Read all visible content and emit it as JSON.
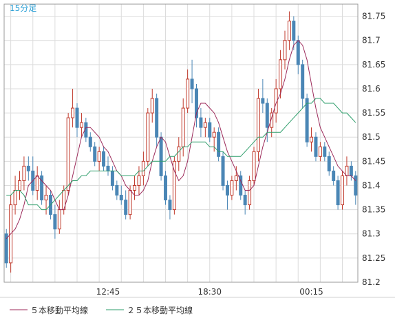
{
  "chart_data": {
    "type": "candlestick",
    "period_label": "15分足",
    "x_tick_labels": [
      "12:45",
      "18:30",
      "00:15"
    ],
    "y_ticks": [
      "81.2",
      "81.25",
      "81.3",
      "81.35",
      "81.4",
      "81.45",
      "81.5",
      "81.55",
      "81.6",
      "81.65",
      "81.7",
      "81.75"
    ],
    "ylim": [
      81.2,
      81.775
    ],
    "grid": true,
    "legend_position": "bottom-left",
    "colors": {
      "up": "#c0392b",
      "down": "#4a86b5",
      "ma5": "#9c2a5a",
      "ma25": "#2e9e6b",
      "grid": "#dcdcdc",
      "frame": "#999999",
      "period": "#2a9fd6"
    },
    "candles_ohlc": [
      [
        81.3,
        81.31,
        81.23,
        81.24
      ],
      [
        81.24,
        81.38,
        81.22,
        81.36
      ],
      [
        81.36,
        81.42,
        81.34,
        81.39
      ],
      [
        81.39,
        81.43,
        81.37,
        81.41
      ],
      [
        81.41,
        81.46,
        81.39,
        81.44
      ],
      [
        81.44,
        81.46,
        81.41,
        81.43
      ],
      [
        81.43,
        81.46,
        81.38,
        81.39
      ],
      [
        81.39,
        81.44,
        81.37,
        81.42
      ],
      [
        81.42,
        81.43,
        81.36,
        81.37
      ],
      [
        81.37,
        81.4,
        81.34,
        81.38
      ],
      [
        81.38,
        81.39,
        81.33,
        81.34
      ],
      [
        81.34,
        81.36,
        81.29,
        81.31
      ],
      [
        81.31,
        81.37,
        81.3,
        81.35
      ],
      [
        81.35,
        81.4,
        81.34,
        81.39
      ],
      [
        81.39,
        81.55,
        81.38,
        81.54
      ],
      [
        81.54,
        81.6,
        81.52,
        81.56
      ],
      [
        81.56,
        81.57,
        81.5,
        81.52
      ],
      [
        81.52,
        81.55,
        81.5,
        81.53
      ],
      [
        81.53,
        81.54,
        81.49,
        81.5
      ],
      [
        81.5,
        81.51,
        81.47,
        81.48
      ],
      [
        81.48,
        81.49,
        81.44,
        81.45
      ],
      [
        81.45,
        81.48,
        81.43,
        81.47
      ],
      [
        81.47,
        81.48,
        81.43,
        81.44
      ],
      [
        81.44,
        81.46,
        81.42,
        81.43
      ],
      [
        81.43,
        81.44,
        81.39,
        81.4
      ],
      [
        81.4,
        81.41,
        81.37,
        81.38
      ],
      [
        81.38,
        81.4,
        81.36,
        81.37
      ],
      [
        81.37,
        81.39,
        81.33,
        81.34
      ],
      [
        81.34,
        81.4,
        81.33,
        81.39
      ],
      [
        81.39,
        81.42,
        81.37,
        81.4
      ],
      [
        81.4,
        81.44,
        81.38,
        81.42
      ],
      [
        81.42,
        81.47,
        81.4,
        81.45
      ],
      [
        81.45,
        81.56,
        81.44,
        81.55
      ],
      [
        81.55,
        81.6,
        81.53,
        81.58
      ],
      [
        81.58,
        81.59,
        81.48,
        81.5
      ],
      [
        81.5,
        81.51,
        81.41,
        81.42
      ],
      [
        81.42,
        81.43,
        81.36,
        81.37
      ],
      [
        81.37,
        81.38,
        81.33,
        81.35
      ],
      [
        81.35,
        81.46,
        81.34,
        81.45
      ],
      [
        81.45,
        81.5,
        81.43,
        81.48
      ],
      [
        81.48,
        81.58,
        81.46,
        81.56
      ],
      [
        81.56,
        81.64,
        81.55,
        81.62
      ],
      [
        81.62,
        81.66,
        81.57,
        81.6
      ],
      [
        81.6,
        81.61,
        81.52,
        81.54
      ],
      [
        81.54,
        81.56,
        81.5,
        81.52
      ],
      [
        81.52,
        81.54,
        81.5,
        81.53
      ],
      [
        81.53,
        81.54,
        81.49,
        81.5
      ],
      [
        81.5,
        81.52,
        81.47,
        81.51
      ],
      [
        81.51,
        81.52,
        81.45,
        81.46
      ],
      [
        81.46,
        81.47,
        81.39,
        81.4
      ],
      [
        81.4,
        81.41,
        81.35,
        81.38
      ],
      [
        81.38,
        81.42,
        81.37,
        81.41
      ],
      [
        81.41,
        81.44,
        81.39,
        81.42
      ],
      [
        81.42,
        81.43,
        81.37,
        81.38
      ],
      [
        81.38,
        81.39,
        81.34,
        81.36
      ],
      [
        81.36,
        81.42,
        81.35,
        81.41
      ],
      [
        81.41,
        81.48,
        81.4,
        81.47
      ],
      [
        81.47,
        81.6,
        81.45,
        81.58
      ],
      [
        81.58,
        81.62,
        81.55,
        81.57
      ],
      [
        81.57,
        81.58,
        81.49,
        81.52
      ],
      [
        81.52,
        81.56,
        81.5,
        81.55
      ],
      [
        81.55,
        81.62,
        81.53,
        81.6
      ],
      [
        81.6,
        81.68,
        81.58,
        81.66
      ],
      [
        81.66,
        81.72,
        81.64,
        81.7
      ],
      [
        81.7,
        81.76,
        81.68,
        81.74
      ],
      [
        81.74,
        81.75,
        81.68,
        81.7
      ],
      [
        81.7,
        81.71,
        81.63,
        81.65
      ],
      [
        81.65,
        81.66,
        81.56,
        81.58
      ],
      [
        81.58,
        81.59,
        81.48,
        81.49
      ],
      [
        81.49,
        81.52,
        81.47,
        81.5
      ],
      [
        81.5,
        81.51,
        81.45,
        81.46
      ],
      [
        81.46,
        81.49,
        81.45,
        81.48
      ],
      [
        81.48,
        81.49,
        81.45,
        81.46
      ],
      [
        81.46,
        81.47,
        81.42,
        81.43
      ],
      [
        81.43,
        81.44,
        81.4,
        81.41
      ],
      [
        81.41,
        81.42,
        81.35,
        81.36
      ],
      [
        81.36,
        81.43,
        81.35,
        81.42
      ],
      [
        81.42,
        81.46,
        81.4,
        81.44
      ],
      [
        81.44,
        81.45,
        81.41,
        81.42
      ],
      [
        81.42,
        81.43,
        81.36,
        81.38
      ]
    ],
    "series": [
      {
        "name": "５本移動平均線",
        "color": "#9c2a5a",
        "values": [
          81.29,
          81.3,
          81.31,
          81.33,
          81.36,
          81.4,
          81.41,
          81.42,
          81.41,
          81.4,
          81.39,
          81.37,
          81.35,
          81.35,
          81.38,
          81.42,
          81.46,
          81.5,
          81.52,
          81.52,
          81.51,
          81.5,
          81.48,
          81.47,
          81.45,
          81.43,
          81.42,
          81.4,
          81.39,
          81.38,
          81.38,
          81.39,
          81.41,
          81.45,
          81.48,
          81.5,
          81.49,
          81.46,
          81.43,
          81.41,
          81.42,
          81.45,
          81.5,
          81.55,
          81.57,
          81.57,
          81.56,
          81.55,
          81.53,
          81.5,
          81.47,
          81.45,
          81.43,
          81.41,
          81.39,
          81.39,
          81.4,
          81.44,
          81.48,
          81.51,
          81.54,
          81.57,
          81.59,
          81.62,
          81.66,
          81.69,
          81.7,
          81.69,
          81.66,
          81.61,
          81.56,
          81.52,
          81.5,
          81.48,
          81.46,
          81.44,
          81.43,
          81.42,
          81.42,
          81.41
        ]
      },
      {
        "name": "２５本移動平均線",
        "color": "#2e9e6b",
        "values": [
          81.38,
          81.38,
          81.39,
          81.39,
          81.38,
          81.36,
          81.36,
          81.36,
          81.35,
          81.35,
          81.36,
          81.37,
          81.38,
          81.39,
          81.4,
          81.41,
          81.41,
          81.42,
          81.42,
          81.43,
          81.43,
          81.43,
          81.43,
          81.43,
          81.43,
          81.43,
          81.42,
          81.42,
          81.42,
          81.42,
          81.43,
          81.43,
          81.44,
          81.45,
          81.45,
          81.45,
          81.45,
          81.46,
          81.46,
          81.47,
          81.48,
          81.48,
          81.49,
          81.49,
          81.49,
          81.49,
          81.48,
          81.48,
          81.47,
          81.47,
          81.46,
          81.46,
          81.46,
          81.46,
          81.47,
          81.48,
          81.49,
          81.5,
          81.5,
          81.51,
          81.51,
          81.51,
          81.51,
          81.52,
          81.53,
          81.54,
          81.55,
          81.56,
          81.57,
          81.57,
          81.58,
          81.58,
          81.57,
          81.57,
          81.57,
          81.56,
          81.55,
          81.55,
          81.54,
          81.53
        ]
      }
    ]
  }
}
